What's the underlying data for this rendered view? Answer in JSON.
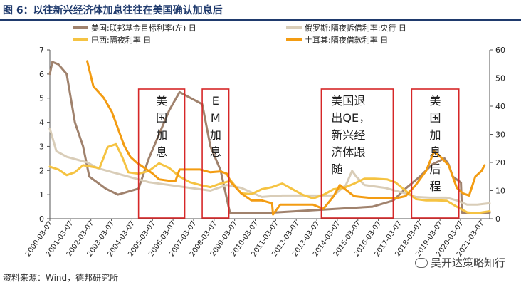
{
  "header": {
    "title": "图 6：以往新兴经济体加息往往在美国确认加息后"
  },
  "footer": {
    "source": "资料来源：Wind，德邦研究所",
    "watermark": "吴开达策略知行"
  },
  "chart_data": {
    "type": "line",
    "xlabel": "",
    "ylabel_left": "",
    "ylabel_right": "",
    "ylim_left": [
      0,
      7
    ],
    "ylim_right": [
      0,
      60
    ],
    "yticks_left": [
      0,
      1,
      2,
      3,
      4,
      5,
      6,
      7
    ],
    "yticks_right": [
      0,
      10,
      20,
      30,
      40,
      50,
      60
    ],
    "xlim": [
      2000.18,
      2021.6
    ],
    "x_tick_labels": [
      "2000-03-07",
      "2001-03-07",
      "2002-03-07",
      "2003-03-07",
      "2004-03-07",
      "2005-03-07",
      "2006-03-07",
      "2007-03-07",
      "2008-03-07",
      "2009-03-07",
      "2010-03-07",
      "2011-03-07",
      "2012-03-07",
      "2013-03-07",
      "2014-03-07",
      "2015-03-07",
      "2016-03-07",
      "2017-03-07",
      "2018-03-07",
      "2019-03-07",
      "2020-03-07",
      "2021-03-07"
    ],
    "legend_position": "top",
    "series": [
      {
        "name": "美国:联邦基金目标利率(左) 日",
        "axis": "left",
        "color": "#a0826d",
        "points": [
          [
            2000.18,
            6.0
          ],
          [
            2000.3,
            6.5
          ],
          [
            2000.6,
            6.4
          ],
          [
            2001.0,
            6.0
          ],
          [
            2001.4,
            4.0
          ],
          [
            2001.8,
            3.0
          ],
          [
            2002.1,
            1.75
          ],
          [
            2002.9,
            1.25
          ],
          [
            2003.5,
            1.0
          ],
          [
            2004.5,
            1.25
          ],
          [
            2005.0,
            2.5
          ],
          [
            2005.5,
            3.5
          ],
          [
            2006.0,
            4.5
          ],
          [
            2006.5,
            5.25
          ],
          [
            2007.6,
            4.75
          ],
          [
            2008.0,
            3.0
          ],
          [
            2008.5,
            2.0
          ],
          [
            2008.95,
            0.25
          ],
          [
            2011.0,
            0.25
          ],
          [
            2015.9,
            0.5
          ],
          [
            2016.9,
            0.75
          ],
          [
            2017.5,
            1.25
          ],
          [
            2018.2,
            1.75
          ],
          [
            2018.8,
            2.25
          ],
          [
            2019.4,
            2.5
          ],
          [
            2019.6,
            2.25
          ],
          [
            2019.8,
            1.75
          ],
          [
            2020.2,
            1.5
          ],
          [
            2020.25,
            0.25
          ],
          [
            2021.6,
            0.25
          ]
        ]
      },
      {
        "name": "俄罗斯:隔夜拆借利率:央行 日",
        "axis": "right",
        "color": "#d9cdb8",
        "points": [
          [
            2000.18,
            32
          ],
          [
            2000.5,
            24
          ],
          [
            2001.0,
            22
          ],
          [
            2002.0,
            20
          ],
          [
            2002.5,
            18
          ],
          [
            2003.0,
            17
          ],
          [
            2004.0,
            15
          ],
          [
            2005.0,
            13
          ],
          [
            2006.0,
            12
          ],
          [
            2007.0,
            11
          ],
          [
            2008.0,
            10
          ],
          [
            2008.8,
            12
          ],
          [
            2009.5,
            11
          ],
          [
            2010.5,
            7.75
          ],
          [
            2011.5,
            8.25
          ],
          [
            2012.5,
            8.25
          ],
          [
            2013.5,
            8.25
          ],
          [
            2014.0,
            8.25
          ],
          [
            2014.6,
            12
          ],
          [
            2014.9,
            17
          ],
          [
            2015.1,
            15
          ],
          [
            2015.5,
            12
          ],
          [
            2016.5,
            11
          ],
          [
            2017.5,
            9
          ],
          [
            2018.0,
            7.75
          ],
          [
            2018.7,
            7.5
          ],
          [
            2019.5,
            7.5
          ],
          [
            2020.0,
            6.5
          ],
          [
            2020.5,
            5.0
          ],
          [
            2021.0,
            5.0
          ],
          [
            2021.6,
            5.5
          ]
        ]
      },
      {
        "name": "巴西:隔夜利率 日",
        "axis": "right",
        "color": "#f5c342",
        "points": [
          [
            2000.18,
            18.5
          ],
          [
            2000.6,
            17.5
          ],
          [
            2001.0,
            15.5
          ],
          [
            2001.4,
            16.5
          ],
          [
            2001.8,
            19
          ],
          [
            2002.6,
            18
          ],
          [
            2003.0,
            25.5
          ],
          [
            2003.4,
            26.5
          ],
          [
            2003.7,
            22
          ],
          [
            2004.0,
            16.5
          ],
          [
            2004.5,
            16.0
          ],
          [
            2005.0,
            17
          ],
          [
            2005.5,
            19.7
          ],
          [
            2006.0,
            18
          ],
          [
            2006.5,
            15
          ],
          [
            2007.0,
            13
          ],
          [
            2007.5,
            12
          ],
          [
            2008.0,
            11.25
          ],
          [
            2008.5,
            12.5
          ],
          [
            2009.0,
            13.5
          ],
          [
            2009.5,
            9
          ],
          [
            2010.0,
            8.75
          ],
          [
            2010.5,
            10.5
          ],
          [
            2011.0,
            11.25
          ],
          [
            2011.5,
            12.5
          ],
          [
            2012.0,
            10.5
          ],
          [
            2012.5,
            8.5
          ],
          [
            2013.0,
            7.25
          ],
          [
            2013.5,
            8.5
          ],
          [
            2014.0,
            10.5
          ],
          [
            2014.5,
            11
          ],
          [
            2015.0,
            12.5
          ],
          [
            2015.5,
            14.25
          ],
          [
            2016.0,
            14.25
          ],
          [
            2016.6,
            14.0
          ],
          [
            2017.0,
            13
          ],
          [
            2017.5,
            10
          ],
          [
            2018.0,
            7
          ],
          [
            2018.5,
            6.5
          ],
          [
            2019.0,
            6.5
          ],
          [
            2019.5,
            6.4
          ],
          [
            2020.0,
            4.25
          ],
          [
            2020.5,
            2.25
          ],
          [
            2021.0,
            2.0
          ],
          [
            2021.6,
            2.65
          ]
        ]
      },
      {
        "name": "土耳其:隔夜借款利率 日",
        "axis": "right",
        "color": "#f39c12",
        "points": [
          [
            2002.0,
            56
          ],
          [
            2002.3,
            47
          ],
          [
            2002.8,
            43
          ],
          [
            2003.2,
            38
          ],
          [
            2003.5,
            32
          ],
          [
            2003.8,
            26
          ],
          [
            2004.1,
            22
          ],
          [
            2004.4,
            20
          ],
          [
            2004.8,
            18
          ],
          [
            2005.2,
            16
          ],
          [
            2005.5,
            14
          ],
          [
            2006.0,
            13.5
          ],
          [
            2006.3,
            13.5
          ],
          [
            2006.5,
            17.5
          ],
          [
            2007.5,
            17.5
          ],
          [
            2008.0,
            16.5
          ],
          [
            2008.5,
            16.8
          ],
          [
            2008.8,
            16.0
          ],
          [
            2009.0,
            13
          ],
          [
            2009.5,
            9
          ],
          [
            2010.0,
            6.5
          ],
          [
            2010.5,
            6.5
          ],
          [
            2011.0,
            5.5
          ],
          [
            2011.05,
            1.5
          ],
          [
            2011.4,
            5
          ],
          [
            2012.0,
            5
          ],
          [
            2012.5,
            5
          ],
          [
            2013.0,
            5
          ],
          [
            2013.5,
            3.5
          ],
          [
            2014.0,
            8
          ],
          [
            2014.3,
            12
          ],
          [
            2015.0,
            8
          ],
          [
            2016.0,
            7.25
          ],
          [
            2017.0,
            7.25
          ],
          [
            2017.5,
            8
          ],
          [
            2018.0,
            12
          ],
          [
            2018.5,
            17
          ],
          [
            2018.9,
            24
          ],
          [
            2019.2,
            22
          ],
          [
            2019.6,
            19
          ],
          [
            2020.0,
            11
          ],
          [
            2020.3,
            9
          ],
          [
            2020.6,
            8.25
          ],
          [
            2020.9,
            15
          ],
          [
            2021.2,
            17
          ],
          [
            2021.35,
            19
          ]
        ]
      }
    ],
    "annotations": [
      {
        "text": "美国加息",
        "x0": 2004.5,
        "x1": 2006.75,
        "chars": [
          "美",
          "国",
          "加",
          "息"
        ]
      },
      {
        "text": "EM加息",
        "x0": 2007.6,
        "x1": 2008.9,
        "chars": [
          "E",
          "M",
          "加",
          "息"
        ]
      },
      {
        "text": "美国退出QE，新兴经济体跟随",
        "x0": 2013.4,
        "x1": 2016.9,
        "lines": [
          "美国退",
          "出QE，",
          "新兴经",
          "济体跟",
          "随"
        ]
      },
      {
        "text": "美国加息后程",
        "x0": 2017.8,
        "x1": 2020.1,
        "chars": [
          "美",
          "国",
          "加",
          "息",
          "后",
          "程"
        ]
      }
    ]
  }
}
